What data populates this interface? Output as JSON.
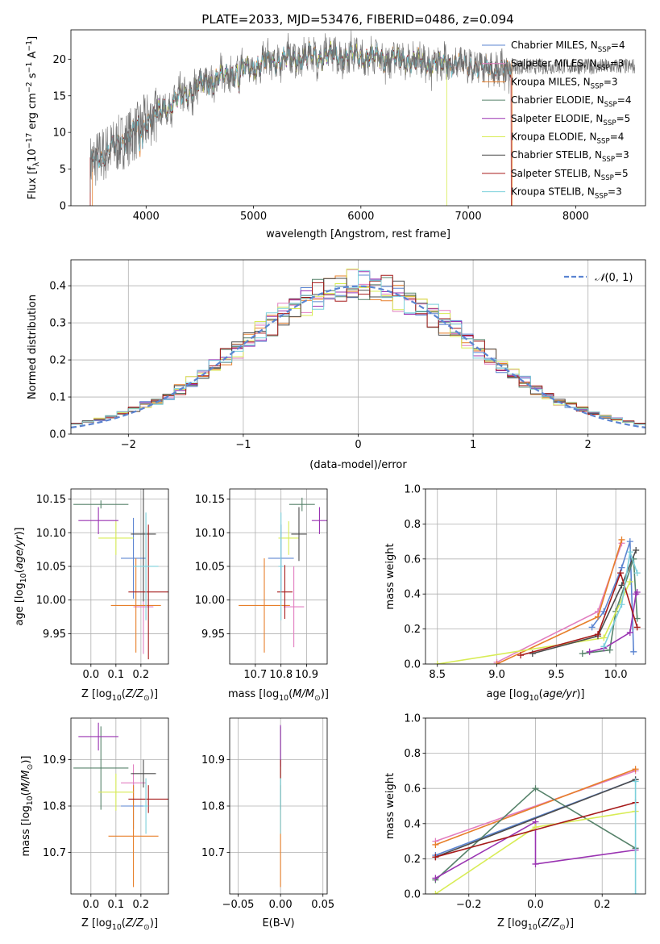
{
  "figure": {
    "title": "PLATE=2033, MJD=53476, FIBERID=0486, z=0.094"
  },
  "colors": {
    "Chabrier MILES": "#5b84d1",
    "Salpeter MILES": "#e27ec0",
    "Kroupa MILES": "#e77f2a",
    "Chabrier ELODIE": "#56826a",
    "Salpeter ELODIE": "#9a34b2",
    "Kroupa ELODIE": "#d8ec55",
    "Chabrier STELIB": "#4b4b4b",
    "Salpeter STELIB": "#a61a1a",
    "Kroupa STELIB": "#7cd0db",
    "normal": "#5b84d1"
  },
  "chart_data": [
    {
      "id": "spectrum",
      "type": "line",
      "title": "PLATE=2033, MJD=53476, FIBERID=0486, z=0.094",
      "xlabel": "wavelength [Angstrom, rest frame]",
      "ylabel": "Flux [f_λ 10^-17 erg cm^-2 s^-1 A^-1]",
      "xlim": [
        3300,
        8650
      ],
      "ylim": [
        0,
        24
      ],
      "xticks": [
        4000,
        5000,
        6000,
        7000,
        8000
      ],
      "yticks": [
        0,
        5,
        10,
        15,
        20
      ],
      "grid": false,
      "legend_position": "upper right",
      "continuum_knots": {
        "x": [
          3480,
          3600,
          3700,
          3800,
          3900,
          4000,
          4100,
          4200,
          4300,
          4400,
          4500,
          4700,
          4900,
          5100,
          5300,
          5500,
          5700,
          5900,
          6100,
          6300,
          6500,
          6700,
          6900,
          7100,
          7300,
          7400
        ],
        "y": [
          5.8,
          7.0,
          8.0,
          9.0,
          10.0,
          11.5,
          12.5,
          13.5,
          14.5,
          15.5,
          16.5,
          17.5,
          18.5,
          19.5,
          20.0,
          20.3,
          20.5,
          20.5,
          20.3,
          20.0,
          19.7,
          19.3,
          19.5,
          18.8,
          18.5,
          18.3
        ]
      },
      "series": [
        {
          "name": "Chabrier MILES",
          "nssp": 4,
          "xmin": 3480,
          "xmax": 7400
        },
        {
          "name": "Salpeter MILES",
          "nssp": 3,
          "xmin": 3480,
          "xmax": 7400
        },
        {
          "name": "Kroupa MILES",
          "nssp": 3,
          "xmin": 3500,
          "xmax": 7410
        },
        {
          "name": "Chabrier ELODIE",
          "nssp": 4,
          "xmin": 4100,
          "xmax": 6800
        },
        {
          "name": "Salpeter ELODIE",
          "nssp": 5,
          "xmin": 4100,
          "xmax": 6800
        },
        {
          "name": "Kroupa ELODIE",
          "nssp": 4,
          "xmin": 4100,
          "xmax": 6800
        },
        {
          "name": "Chabrier STELIB",
          "nssp": 3,
          "xmin": 3480,
          "xmax": 7400
        },
        {
          "name": "Salpeter STELIB",
          "nssp": 5,
          "xmin": 3480,
          "xmax": 7400
        },
        {
          "name": "Kroupa STELIB",
          "nssp": 3,
          "xmin": 3480,
          "xmax": 7400
        }
      ]
    },
    {
      "id": "residuals",
      "type": "step",
      "xlabel": "(data-model)/error",
      "ylabel": "Normed distribution",
      "xlim": [
        -2.5,
        2.5
      ],
      "ylim": [
        0,
        0.47
      ],
      "xticks": [
        -2,
        -1,
        0,
        1,
        2
      ],
      "yticks": [
        0.0,
        0.1,
        0.2,
        0.3,
        0.4
      ],
      "grid": true,
      "legend_position": "upper right",
      "bin_width": 0.1,
      "reference": {
        "name": "N(0,1)",
        "mean": 0,
        "sigma": 1
      }
    },
    {
      "id": "age_vs_Z",
      "type": "errorbar",
      "xlabel": "Z [log10(Z/Z☉)]",
      "ylabel": "age  [log10(age/yr)]",
      "xlim": [
        -0.08,
        0.31
      ],
      "ylim": [
        9.905,
        10.165
      ],
      "xticks": [
        0.0,
        0.1,
        0.2
      ],
      "yticks": [
        9.95,
        10.0,
        10.05,
        10.1,
        10.15
      ],
      "grid": true,
      "points": [
        {
          "series": "Chabrier MILES",
          "x": 0.17,
          "xerr": 0.05,
          "y": 10.062,
          "yerr": 0.06
        },
        {
          "series": "Salpeter MILES",
          "x": 0.21,
          "xerr": 0.04,
          "y": 9.99,
          "yerr": 0.07
        },
        {
          "series": "Kroupa MILES",
          "x": 0.18,
          "xerr": 0.1,
          "y": 9.992,
          "yerr": 0.07
        },
        {
          "series": "Chabrier ELODIE",
          "x": 0.04,
          "xerr": 0.11,
          "y": 10.142,
          "yerr": 0.006
        },
        {
          "series": "Salpeter ELODIE",
          "x": 0.03,
          "xerr": 0.08,
          "y": 10.118,
          "yerr": 0.02
        },
        {
          "series": "Kroupa ELODIE",
          "x": 0.1,
          "xerr": 0.07,
          "y": 10.092,
          "yerr": 0.025
        },
        {
          "series": "Chabrier STELIB",
          "x": 0.21,
          "xerr": 0.05,
          "y": 10.098,
          "yerr": 0.1
        },
        {
          "series": "Salpeter STELIB",
          "x": 0.23,
          "xerr": 0.08,
          "y": 10.012,
          "yerr": 0.1
        },
        {
          "series": "Kroupa STELIB",
          "x": 0.22,
          "xerr": 0.05,
          "y": 10.05,
          "yerr": 0.08
        }
      ]
    },
    {
      "id": "age_vs_mass",
      "type": "errorbar",
      "xlabel": "mass [log10(M/M☉)]",
      "ylabel": "",
      "xlim": [
        10.6,
        10.98
      ],
      "ylim": [
        9.905,
        10.165
      ],
      "xticks": [
        10.7,
        10.8,
        10.9
      ],
      "yticks": [
        9.95,
        10.0,
        10.05,
        10.1,
        10.15
      ],
      "grid": true,
      "points": [
        {
          "series": "Chabrier MILES",
          "x": 10.8,
          "xerr": 0.05,
          "y": 10.062,
          "yerr": 0.05
        },
        {
          "series": "Salpeter MILES",
          "x": 10.85,
          "xerr": 0.04,
          "y": 9.99,
          "yerr": 0.06
        },
        {
          "series": "Kroupa MILES",
          "x": 10.735,
          "xerr": 0.1,
          "y": 9.992,
          "yerr": 0.07
        },
        {
          "series": "Chabrier ELODIE",
          "x": 10.882,
          "xerr": 0.05,
          "y": 10.142,
          "yerr": 0.01
        },
        {
          "series": "Salpeter ELODIE",
          "x": 10.95,
          "xerr": 0.03,
          "y": 10.118,
          "yerr": 0.02
        },
        {
          "series": "Kroupa ELODIE",
          "x": 10.83,
          "xerr": 0.04,
          "y": 10.092,
          "yerr": 0.025
        },
        {
          "series": "Chabrier STELIB",
          "x": 10.87,
          "xerr": 0.03,
          "y": 10.098,
          "yerr": 0.04
        },
        {
          "series": "Salpeter STELIB",
          "x": 10.815,
          "xerr": 0.03,
          "y": 10.012,
          "yerr": 0.04
        },
        {
          "series": "Kroupa STELIB",
          "x": 10.8,
          "xerr": 0.01,
          "y": 10.05,
          "yerr": 0.08
        }
      ]
    },
    {
      "id": "weight_vs_age",
      "type": "line",
      "xlabel": "age  [log10(age/yr)]",
      "ylabel": "mass weight",
      "xlim": [
        8.4,
        10.25
      ],
      "ylim": [
        0,
        1
      ],
      "xticks": [
        8.5,
        9.0,
        9.5,
        10.0
      ],
      "yticks": [
        0.0,
        0.2,
        0.4,
        0.6,
        0.8,
        1.0
      ],
      "grid": true,
      "series": [
        {
          "name": "Chabrier MILES",
          "x": [
            9.8,
            9.9,
            10.05,
            10.12,
            10.15
          ],
          "y": [
            0.21,
            0.3,
            0.55,
            0.7,
            0.07
          ]
        },
        {
          "name": "Salpeter MILES",
          "x": [
            9.0,
            9.85,
            10.05
          ],
          "y": [
            0.01,
            0.3,
            0.69
          ]
        },
        {
          "name": "Kroupa MILES",
          "x": [
            9.0,
            9.85,
            10.05
          ],
          "y": [
            0.0,
            0.27,
            0.71
          ]
        },
        {
          "name": "Chabrier ELODIE",
          "x": [
            9.72,
            9.95,
            10.0,
            10.15,
            10.18
          ],
          "y": [
            0.06,
            0.08,
            0.3,
            0.6,
            0.26
          ]
        },
        {
          "name": "Salpeter ELODIE",
          "x": [
            9.78,
            9.9,
            10.12,
            10.17,
            10.18
          ],
          "y": [
            0.07,
            0.09,
            0.18,
            0.4,
            0.41
          ]
        },
        {
          "name": "Kroupa ELODIE",
          "x": [
            8.5,
            9.9,
            10.12
          ],
          "y": [
            0.0,
            0.15,
            0.47
          ]
        },
        {
          "name": "Chabrier STELIB",
          "x": [
            9.3,
            9.85,
            10.05,
            10.17
          ],
          "y": [
            0.06,
            0.16,
            0.45,
            0.65
          ]
        },
        {
          "name": "Salpeter STELIB",
          "x": [
            9.2,
            9.85,
            10.04,
            10.18
          ],
          "y": [
            0.05,
            0.17,
            0.52,
            0.21
          ]
        },
        {
          "name": "Kroupa STELIB",
          "x": [
            9.9,
            10.05,
            10.12,
            10.18
          ],
          "y": [
            0.1,
            0.34,
            0.64,
            0.52
          ]
        }
      ]
    },
    {
      "id": "mass_vs_Z",
      "type": "errorbar",
      "xlabel": "Z [log10(Z/Z☉)]",
      "ylabel": "mass [log10(M/M☉)]",
      "xlim": [
        -0.08,
        0.31
      ],
      "ylim": [
        10.61,
        10.99
      ],
      "xticks": [
        0.0,
        0.1,
        0.2
      ],
      "yticks": [
        10.7,
        10.8,
        10.9
      ],
      "grid": true,
      "points": [
        {
          "series": "Chabrier MILES",
          "x": 0.17,
          "xerr": 0.05,
          "y": 10.8,
          "yerr": 0.05
        },
        {
          "series": "Salpeter MILES",
          "x": 0.17,
          "xerr": 0.05,
          "y": 10.85,
          "yerr": 0.04
        },
        {
          "series": "Kroupa MILES",
          "x": 0.17,
          "xerr": 0.1,
          "y": 10.735,
          "yerr": 0.11
        },
        {
          "series": "Chabrier ELODIE",
          "x": 0.04,
          "xerr": 0.11,
          "y": 10.882,
          "yerr": 0.09
        },
        {
          "series": "Salpeter ELODIE",
          "x": 0.03,
          "xerr": 0.08,
          "y": 10.95,
          "yerr": 0.03
        },
        {
          "series": "Kroupa ELODIE",
          "x": 0.1,
          "xerr": 0.07,
          "y": 10.83,
          "yerr": 0.04
        },
        {
          "series": "Chabrier STELIB",
          "x": 0.21,
          "xerr": 0.05,
          "y": 10.87,
          "yerr": 0.03
        },
        {
          "series": "Salpeter STELIB",
          "x": 0.23,
          "xerr": 0.08,
          "y": 10.815,
          "yerr": 0.03
        },
        {
          "series": "Kroupa STELIB",
          "x": 0.22,
          "xerr": 0.01,
          "y": 10.8,
          "yerr": 0.06
        }
      ]
    },
    {
      "id": "mass_vs_ebv",
      "type": "errorbar",
      "xlabel": "E(B-V)",
      "ylabel": "",
      "xlim": [
        -0.06,
        0.055
      ],
      "ylim": [
        10.61,
        10.99
      ],
      "xticks": [
        -0.05,
        0.0,
        0.05
      ],
      "yticks": [
        10.7,
        10.8,
        10.9
      ],
      "grid": true,
      "points": [
        {
          "series": "Kroupa MILES",
          "x": 0.0,
          "xerr": 0.0,
          "y": 10.735,
          "yerr": 0.11
        },
        {
          "series": "Chabrier ELODIE",
          "x": 0.0,
          "xerr": 0.0,
          "y": 10.882,
          "yerr": 0.09
        },
        {
          "series": "Salpeter ELODIE",
          "x": 0.0,
          "xerr": 0.0,
          "y": 10.93,
          "yerr": 0.045
        },
        {
          "series": "Salpeter STELIB",
          "x": 0.0,
          "xerr": 0.0,
          "y": 10.88,
          "yerr": 0.02
        },
        {
          "series": "Kroupa STELIB",
          "x": 0.0,
          "xerr": 0.0,
          "y": 10.8,
          "yerr": 0.06
        }
      ]
    },
    {
      "id": "weight_vs_Z",
      "type": "line",
      "xlabel": "Z [log10(Z/Z☉)]",
      "ylabel": "mass weight",
      "xlim": [
        -0.33,
        0.33
      ],
      "ylim": [
        0,
        1
      ],
      "xticks": [
        -0.2,
        0.0,
        0.2
      ],
      "yticks": [
        0.0,
        0.2,
        0.4,
        0.6,
        0.8,
        1.0
      ],
      "grid": true,
      "series": [
        {
          "name": "Chabrier MILES",
          "x": [
            -0.3,
            0.3
          ],
          "y": [
            0.22,
            0.65
          ]
        },
        {
          "name": "Salpeter MILES",
          "x": [
            -0.3,
            0.3
          ],
          "y": [
            0.3,
            0.7
          ]
        },
        {
          "name": "Kroupa MILES",
          "x": [
            -0.3,
            0.3
          ],
          "y": [
            0.28,
            0.71
          ]
        },
        {
          "name": "Chabrier ELODIE",
          "x": [
            -0.3,
            0.0,
            0.3
          ],
          "y": [
            0.08,
            0.6,
            0.26
          ]
        },
        {
          "name": "Salpeter ELODIE",
          "x": [
            -0.3,
            0.0,
            0.0,
            0.3
          ],
          "y": [
            0.09,
            0.41,
            0.17,
            0.25
          ]
        },
        {
          "name": "Kroupa ELODIE",
          "x": [
            -0.3,
            0.0,
            0.3
          ],
          "y": [
            0.0,
            0.38,
            0.47
          ]
        },
        {
          "name": "Chabrier STELIB",
          "x": [
            -0.3,
            0.3
          ],
          "y": [
            0.21,
            0.65
          ]
        },
        {
          "name": "Salpeter STELIB",
          "x": [
            -0.3,
            0.3
          ],
          "y": [
            0.21,
            0.52
          ]
        },
        {
          "name": "Kroupa STELIB",
          "x": [
            0.3,
            0.3
          ],
          "y": [
            0.64,
            0.0
          ]
        }
      ]
    }
  ]
}
